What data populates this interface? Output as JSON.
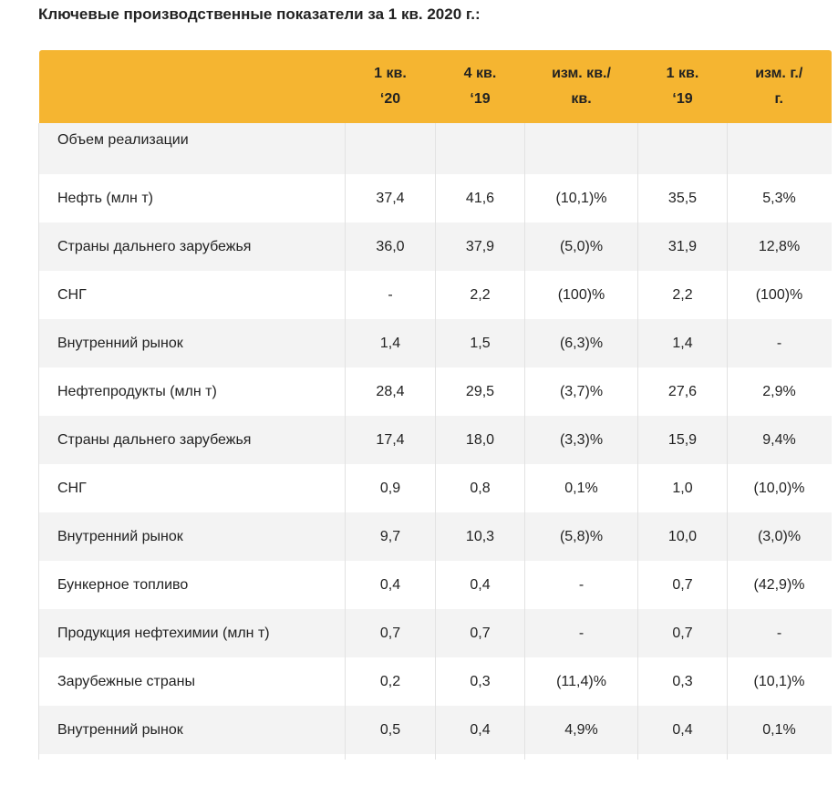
{
  "title": "Ключевые производственные показатели за 1 кв. 2020 г.:",
  "table": {
    "headers": [
      {
        "line1": "",
        "line2": ""
      },
      {
        "line1": "1 кв.",
        "line2": "‘20"
      },
      {
        "line1": "4 кв.",
        "line2": "‘19"
      },
      {
        "line1": "изм. кв./",
        "line2": "кв."
      },
      {
        "line1": "1 кв.",
        "line2": "‘19"
      },
      {
        "line1": "изм. г./",
        "line2": "г."
      }
    ],
    "section_label": "Объем реализации",
    "rows": [
      [
        "Нефть (млн т)",
        "37,4",
        "41,6",
        "(10,1)%",
        "35,5",
        "5,3%"
      ],
      [
        "Страны дальнего зарубежья",
        "36,0",
        "37,9",
        "(5,0)%",
        "31,9",
        "12,8%"
      ],
      [
        "СНГ",
        "-",
        "2,2",
        "(100)%",
        "2,2",
        "(100)%"
      ],
      [
        "Внутренний рынок",
        "1,4",
        "1,5",
        "(6,3)%",
        "1,4",
        "-"
      ],
      [
        "Нефтепродукты (млн т)",
        "28,4",
        "29,5",
        "(3,7)%",
        "27,6",
        "2,9%"
      ],
      [
        "Страны дальнего зарубежья",
        "17,4",
        "18,0",
        "(3,3)%",
        "15,9",
        "9,4%"
      ],
      [
        "СНГ",
        "0,9",
        "0,8",
        "0,1%",
        "1,0",
        "(10,0)%"
      ],
      [
        "Внутренний рынок",
        "9,7",
        "10,3",
        "(5,8)%",
        "10,0",
        "(3,0)%"
      ],
      [
        "Бункерное топливо",
        "0,4",
        "0,4",
        "-",
        "0,7",
        "(42,9)%"
      ],
      [
        "Продукция нефтехимии (млн т)",
        "0,7",
        "0,7",
        "-",
        "0,7",
        "-"
      ],
      [
        "Зарубежные страны",
        "0,2",
        "0,3",
        "(11,4)%",
        "0,3",
        "(10,1)%"
      ],
      [
        "Внутренний рынок",
        "0,5",
        "0,4",
        "4,9%",
        "0,4",
        "0,1%"
      ]
    ]
  },
  "colors": {
    "header_bg": "#f5b531",
    "row_shade": "#f3f3f3",
    "text": "#222222"
  }
}
